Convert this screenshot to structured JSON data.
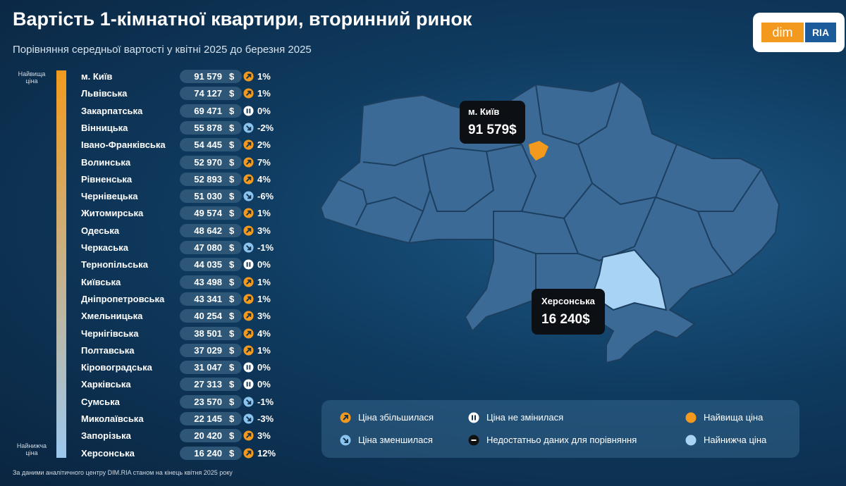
{
  "header": {
    "title": "Вартість 1-кімнатної квартири, вторинний ринок",
    "subtitle": "Порівняння середньої вартості у квітні 2025 до березня 2025"
  },
  "logo": {
    "left": "dim",
    "right": "RIA"
  },
  "scale": {
    "top": "Найвища ціна",
    "bottom": "Найнижча ціна"
  },
  "table": {
    "currency": "$",
    "rows": [
      {
        "name": "м. Київ",
        "price": "91 579",
        "trend": "up",
        "change": "1%"
      },
      {
        "name": "Львівська",
        "price": "74 127",
        "trend": "up",
        "change": "1%"
      },
      {
        "name": "Закарпатська",
        "price": "69 471",
        "trend": "same",
        "change": "0%"
      },
      {
        "name": "Вінницька",
        "price": "55 878",
        "trend": "down",
        "change": "-2%"
      },
      {
        "name": "Івано-Франківська",
        "price": "54 445",
        "trend": "up",
        "change": "2%"
      },
      {
        "name": "Волинська",
        "price": "52 970",
        "trend": "up",
        "change": "7%"
      },
      {
        "name": "Рівненська",
        "price": "52 893",
        "trend": "up",
        "change": "4%"
      },
      {
        "name": "Чернівецька",
        "price": "51 030",
        "trend": "down",
        "change": "-6%"
      },
      {
        "name": "Житомирська",
        "price": "49 574",
        "trend": "up",
        "change": "1%"
      },
      {
        "name": "Одеська",
        "price": "48 642",
        "trend": "up",
        "change": "3%"
      },
      {
        "name": "Черкаська",
        "price": "47 080",
        "trend": "down",
        "change": "-1%"
      },
      {
        "name": "Тернопільська",
        "price": "44 035",
        "trend": "same",
        "change": "0%"
      },
      {
        "name": "Київська",
        "price": "43 498",
        "trend": "up",
        "change": "1%"
      },
      {
        "name": "Дніпропетровська",
        "price": "43 341",
        "trend": "up",
        "change": "1%"
      },
      {
        "name": "Хмельницька",
        "price": "40 254",
        "trend": "up",
        "change": "3%"
      },
      {
        "name": "Чернігівська",
        "price": "38 501",
        "trend": "up",
        "change": "4%"
      },
      {
        "name": "Полтавська",
        "price": "37 029",
        "trend": "up",
        "change": "1%"
      },
      {
        "name": "Кіровоградська",
        "price": "31 047",
        "trend": "same",
        "change": "0%"
      },
      {
        "name": "Харківська",
        "price": "27 313",
        "trend": "same",
        "change": "0%"
      },
      {
        "name": "Сумська",
        "price": "23 570",
        "trend": "down",
        "change": "-1%"
      },
      {
        "name": "Миколаївська",
        "price": "22 145",
        "trend": "down",
        "change": "-3%"
      },
      {
        "name": "Запорізька",
        "price": "20 420",
        "trend": "up",
        "change": "3%"
      },
      {
        "name": "Херсонська",
        "price": "16 240",
        "trend": "up",
        "change": "12%"
      }
    ]
  },
  "map": {
    "callouts": [
      {
        "name": "м. Київ",
        "value": "91 579$"
      },
      {
        "name": "Херсонська",
        "value": "16 240$"
      }
    ]
  },
  "legend": [
    {
      "icon": "up",
      "label": "Ціна збільшилася"
    },
    {
      "icon": "same",
      "label": "Ціна не змінилася"
    },
    {
      "icon": "high",
      "label": "Найвища ціна"
    },
    {
      "icon": "down",
      "label": "Ціна зменшилася"
    },
    {
      "icon": "nodata",
      "label": "Недостатньо даних для порівняння"
    },
    {
      "icon": "low",
      "label": "Найнижча ціна"
    }
  ],
  "footer": "За даними аналітичного центру DIM.RIA станом на кінець квітня 2025 року"
}
